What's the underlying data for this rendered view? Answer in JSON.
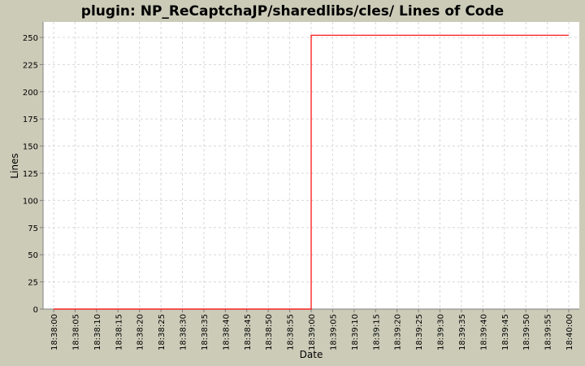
{
  "chart_data": {
    "type": "line",
    "title": "plugin: NP_ReCaptchaJP/sharedlibs/cles/ Lines of Code",
    "xlabel": "Date",
    "ylabel": "Lines",
    "ylim": [
      0,
      250
    ],
    "yticks": [
      0,
      25,
      50,
      75,
      100,
      125,
      150,
      175,
      200,
      225,
      250
    ],
    "xticks": [
      "18:38:00",
      "18:38:05",
      "18:38:10",
      "18:38:15",
      "18:38:20",
      "18:38:25",
      "18:38:30",
      "18:38:35",
      "18:38:40",
      "18:38:45",
      "18:38:50",
      "18:38:55",
      "18:39:00",
      "18:39:05",
      "18:39:10",
      "18:39:15",
      "18:39:20",
      "18:39:25",
      "18:39:30",
      "18:39:35",
      "18:39:40",
      "18:39:45",
      "18:39:50",
      "18:39:55",
      "18:40:00"
    ],
    "grid": true,
    "series": [
      {
        "color": "#ff0000",
        "points": [
          {
            "x": "18:38:00",
            "y": 0
          },
          {
            "x": "18:39:00",
            "y": 0
          },
          {
            "x": "18:39:00",
            "y": 252
          },
          {
            "x": "18:40:00",
            "y": 252
          }
        ]
      }
    ],
    "colors": {
      "background": "#cbcbb8",
      "plot": "#ffffff",
      "grid": "#d8d8d8",
      "axis": "#808080"
    }
  }
}
